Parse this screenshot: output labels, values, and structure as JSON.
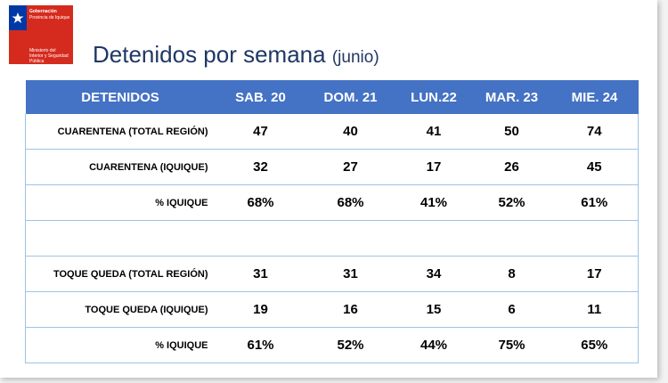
{
  "logo": {
    "lines": [
      "Gobernación",
      "Provincia de Iquique",
      "Ministerio del Interior y Seguridad Pública"
    ]
  },
  "header": {
    "title": "Detenidos por semana",
    "subtitle": "(junio)"
  },
  "table": {
    "columns": [
      "DETENIDOS",
      "SAB. 20",
      "DOM. 21",
      "LUN.22",
      "MAR. 23",
      "MIE. 24"
    ],
    "rows": [
      [
        "CUARENTENA (TOTAL REGIÓN)",
        "47",
        "40",
        "41",
        "50",
        "74"
      ],
      [
        "CUARENTENA (IQUIQUE)",
        "32",
        "27",
        "17",
        "26",
        "45"
      ],
      [
        "% IQUIQUE",
        "68%",
        "68%",
        "41%",
        "52%",
        "61%"
      ],
      [
        "TOQUE QUEDA (TOTAL REGIÓN)",
        "31",
        "31",
        "34",
        "8",
        "17"
      ],
      [
        "TOQUE QUEDA (IQUIQUE)",
        "19",
        "16",
        "15",
        "6",
        "11"
      ],
      [
        "% IQUIQUE",
        "61%",
        "52%",
        "44%",
        "75%",
        "65%"
      ]
    ]
  }
}
